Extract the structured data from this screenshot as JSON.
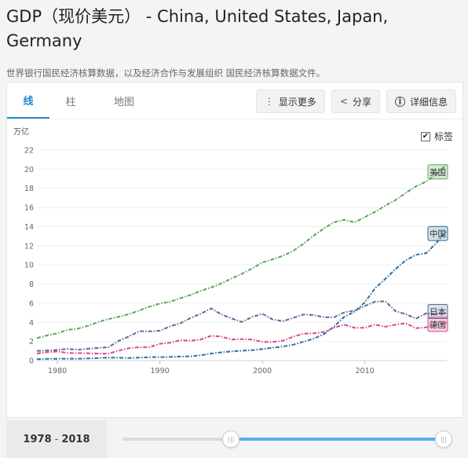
{
  "page": {
    "title": "GDP（现价美元） - China, United States, Japan, Germany",
    "subtitle": "世界银行国民经济核算数据，以及经济合作与发展组织 国民经济核算数据文件。"
  },
  "tabs": [
    {
      "label": "线",
      "active": true
    },
    {
      "label": "柱",
      "active": false
    },
    {
      "label": "地图",
      "active": false
    }
  ],
  "actions": {
    "more_label": "显示更多",
    "more_icon": "vertical-dots-icon",
    "share_label": "分享",
    "share_icon": "share-icon",
    "details_label": "详细信息",
    "details_icon": "info-icon"
  },
  "labels_toggle": {
    "label": "标签",
    "checked": true
  },
  "range": {
    "start": "1978",
    "separator": "-",
    "end": "2018",
    "slider_start_fraction": 0.32,
    "slider_end_fraction": 1.0
  },
  "chart_data": {
    "type": "line",
    "ylabel": "万亿",
    "ylim": [
      0,
      22
    ],
    "y_ticks": [
      0,
      2,
      4,
      6,
      8,
      10,
      12,
      14,
      16,
      18,
      20,
      22
    ],
    "xlim": [
      1978,
      2018
    ],
    "x_ticks": [
      1980,
      1990,
      2000,
      2010
    ],
    "grid": true,
    "x": [
      1978,
      1979,
      1980,
      1981,
      1982,
      1983,
      1984,
      1985,
      1986,
      1987,
      1988,
      1989,
      1990,
      1991,
      1992,
      1993,
      1994,
      1995,
      1996,
      1997,
      1998,
      1999,
      2000,
      2001,
      2002,
      2003,
      2004,
      2005,
      2006,
      2007,
      2008,
      2009,
      2010,
      2011,
      2012,
      2013,
      2014,
      2015,
      2016,
      2017,
      2018
    ],
    "series": [
      {
        "name": "美国",
        "color": "#5aa55a",
        "values": [
          2.35,
          2.63,
          2.86,
          3.21,
          3.34,
          3.64,
          4.04,
          4.34,
          4.58,
          4.86,
          5.24,
          5.64,
          5.96,
          6.16,
          6.52,
          6.86,
          7.29,
          7.64,
          8.07,
          8.58,
          9.06,
          9.63,
          10.25,
          10.58,
          10.94,
          11.46,
          12.21,
          13.04,
          13.81,
          14.45,
          14.71,
          14.45,
          14.99,
          15.54,
          16.2,
          16.78,
          17.52,
          18.22,
          18.71,
          19.49,
          20.54
        ]
      },
      {
        "name": "中国",
        "color": "#2e6f9e",
        "values": [
          0.15,
          0.18,
          0.19,
          0.2,
          0.2,
          0.23,
          0.26,
          0.31,
          0.3,
          0.27,
          0.31,
          0.35,
          0.36,
          0.38,
          0.43,
          0.44,
          0.56,
          0.73,
          0.86,
          0.96,
          1.03,
          1.09,
          1.21,
          1.34,
          1.47,
          1.66,
          1.96,
          2.29,
          2.75,
          3.55,
          4.59,
          5.1,
          6.09,
          7.55,
          8.53,
          9.57,
          10.48,
          11.06,
          11.23,
          12.31,
          13.61
        ]
      },
      {
        "name": "日本",
        "color": "#5b6b94",
        "values": [
          1.01,
          1.06,
          1.11,
          1.22,
          1.13,
          1.24,
          1.32,
          1.4,
          2.08,
          2.53,
          3.07,
          3.05,
          3.13,
          3.58,
          3.91,
          4.45,
          4.91,
          5.45,
          4.83,
          4.41,
          4.03,
          4.56,
          4.89,
          4.3,
          4.12,
          4.45,
          4.82,
          4.76,
          4.53,
          4.52,
          5.04,
          5.23,
          5.7,
          6.16,
          6.2,
          5.16,
          4.85,
          4.39,
          4.93,
          4.86,
          4.97
        ]
      },
      {
        "name": "德国",
        "color": "#d6468a",
        "values": [
          0.74,
          0.88,
          0.95,
          0.8,
          0.78,
          0.77,
          0.73,
          0.73,
          1.04,
          1.3,
          1.4,
          1.4,
          1.76,
          1.87,
          2.13,
          2.07,
          2.21,
          2.59,
          2.5,
          2.21,
          2.24,
          2.2,
          1.95,
          1.95,
          2.08,
          2.5,
          2.81,
          2.85,
          2.99,
          3.43,
          3.75,
          3.42,
          3.42,
          3.76,
          3.54,
          3.75,
          3.9,
          3.38,
          3.47,
          3.69,
          3.95
        ]
      }
    ]
  }
}
